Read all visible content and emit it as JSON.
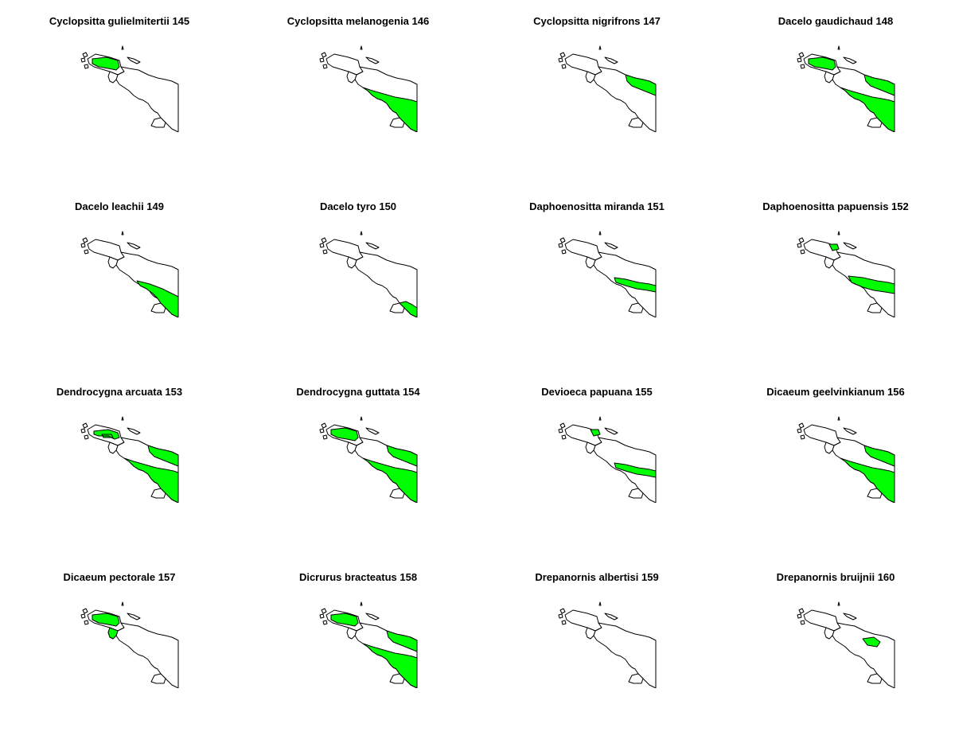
{
  "colors": {
    "range_fill": "#00ff00",
    "land_fill": "#ffffff",
    "outline": "#000000",
    "background": "#ffffff"
  },
  "grid": {
    "rows": 4,
    "cols": 4
  },
  "panels": [
    {
      "title": "Cyclopsitta gulielmitertii 145",
      "ranges": [
        "birdshead"
      ]
    },
    {
      "title": "Cyclopsitta melanogenia 146",
      "ranges": [
        "south_lowlands"
      ]
    },
    {
      "title": "Cyclopsitta nigrifrons 147",
      "ranges": [
        "north_coast"
      ]
    },
    {
      "title": "Dacelo gaudichaud 148",
      "ranges": [
        "birdshead",
        "north_coast",
        "south_lowlands"
      ]
    },
    {
      "title": "Dacelo leachii 149",
      "ranges": [
        "south_east"
      ]
    },
    {
      "title": "Dacelo tyro 150",
      "ranges": [
        "south_tip"
      ]
    },
    {
      "title": "Daphoenositta miranda 151",
      "ranges": [
        "central_band"
      ]
    },
    {
      "title": "Daphoenositta papuensis 152",
      "ranges": [
        "central_band_wide",
        "birdshead_small"
      ]
    },
    {
      "title": "Dendrocygna arcuata 153",
      "ranges": [
        "birdshead_ring",
        "north_coast",
        "south_lowlands"
      ]
    },
    {
      "title": "Dendrocygna guttata 154",
      "ranges": [
        "birdshead",
        "north_coast",
        "south_lowlands"
      ]
    },
    {
      "title": "Devioeca papuana 155",
      "ranges": [
        "central_band",
        "birdshead_small"
      ]
    },
    {
      "title": "Dicaeum geelvinkianum 156",
      "ranges": [
        "north_coast",
        "south_lowlands"
      ]
    },
    {
      "title": "Dicaeum pectorale 157",
      "ranges": [
        "birdshead",
        "neck"
      ]
    },
    {
      "title": "Dicrurus bracteatus 158",
      "ranges": [
        "birdshead",
        "north_coast",
        "south_lowlands"
      ]
    },
    {
      "title": "Drepanornis albertisi 159",
      "ranges": []
    },
    {
      "title": "Drepanornis bruijnii 160",
      "ranges": [
        "north_spot"
      ]
    }
  ]
}
